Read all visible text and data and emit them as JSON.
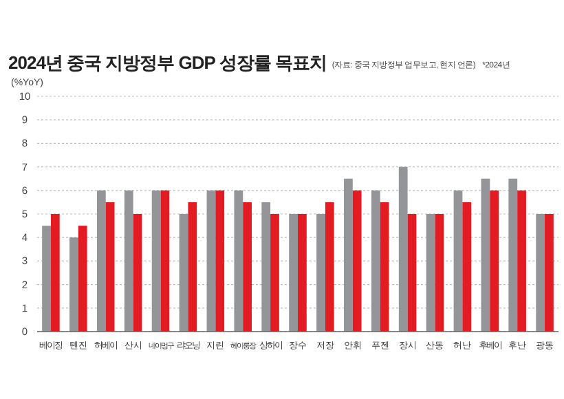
{
  "chart_data": {
    "type": "bar",
    "title": "2024년 중국 지방정부 GDP 성장률 목표치",
    "subtitle": "(자료: 중국 지방정부 업무보고, 현지 언론)",
    "ylabel": "(%YoY)",
    "annotations": [
      "*2024년"
    ],
    "categories": [
      "베이징",
      "톈진",
      "허베이",
      "산시",
      "네이멍구",
      "랴오닝",
      "지린",
      "헤이룽장",
      "상하이",
      "장수",
      "저장",
      "안휘",
      "푸젠",
      "장시",
      "산동",
      "허난",
      "후베이",
      "후난",
      "광동"
    ],
    "series": [
      {
        "color": "#939598",
        "values": [
          4.5,
          4,
          6,
          6,
          6,
          5,
          6,
          6,
          5.5,
          5,
          5,
          6.5,
          6,
          7,
          5,
          6,
          6.5,
          6.5,
          5
        ]
      },
      {
        "color": "#e31b23",
        "values": [
          5,
          4.5,
          5.5,
          5,
          6,
          5.5,
          6,
          5.5,
          5,
          5,
          5.5,
          6,
          5.5,
          5,
          5,
          5.5,
          6,
          6,
          5
        ]
      }
    ],
    "ylim": [
      0,
      10
    ],
    "yticks": [
      0,
      1,
      2,
      3,
      4,
      5,
      6,
      7,
      8,
      9,
      10
    ],
    "grid": "y"
  }
}
